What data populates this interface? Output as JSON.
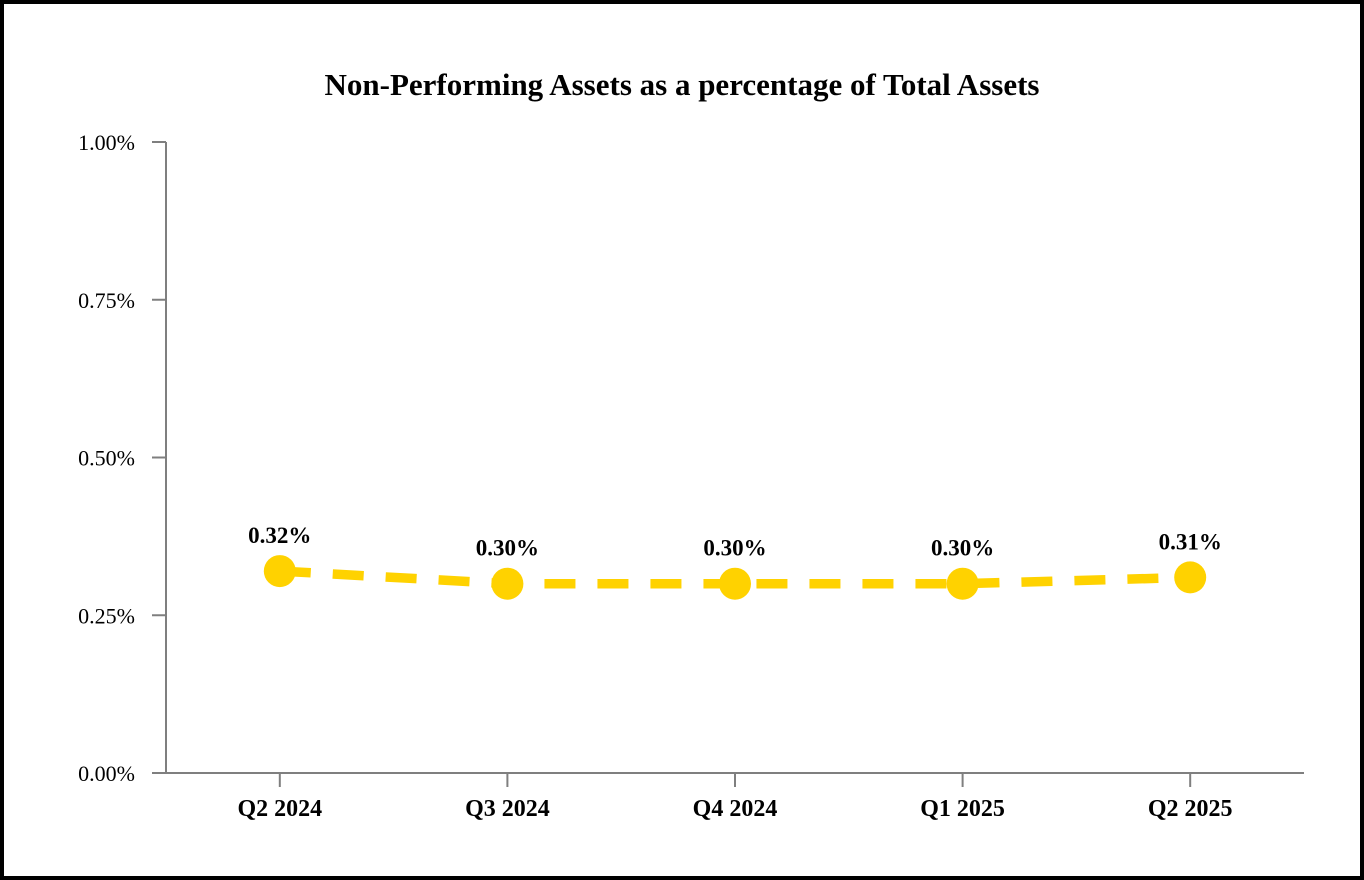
{
  "chart_data": {
    "type": "line",
    "title": "Non-Performing Assets as a percentage of Total Assets",
    "categories": [
      "Q2 2024",
      "Q3 2024",
      "Q4 2024",
      "Q1 2025",
      "Q2 2025"
    ],
    "values": [
      0.32,
      0.3,
      0.3,
      0.3,
      0.31
    ],
    "point_labels": [
      "0.32%",
      "0.30%",
      "0.30%",
      "0.30%",
      "0.31%"
    ],
    "xlabel": "",
    "ylabel": "",
    "ylim": [
      0,
      1.0
    ],
    "yticks": [
      0,
      0.25,
      0.5,
      0.75,
      1.0
    ],
    "ytick_labels": [
      "0.00%",
      "0.25%",
      "0.50%",
      "0.75%",
      "1.00%"
    ],
    "grid": false,
    "legend": "none",
    "line_style": "dashed",
    "line_color": "#FFD200",
    "marker_color": "#FFD200",
    "axis_color": "#7F7F7F",
    "text_color": "#000000"
  }
}
